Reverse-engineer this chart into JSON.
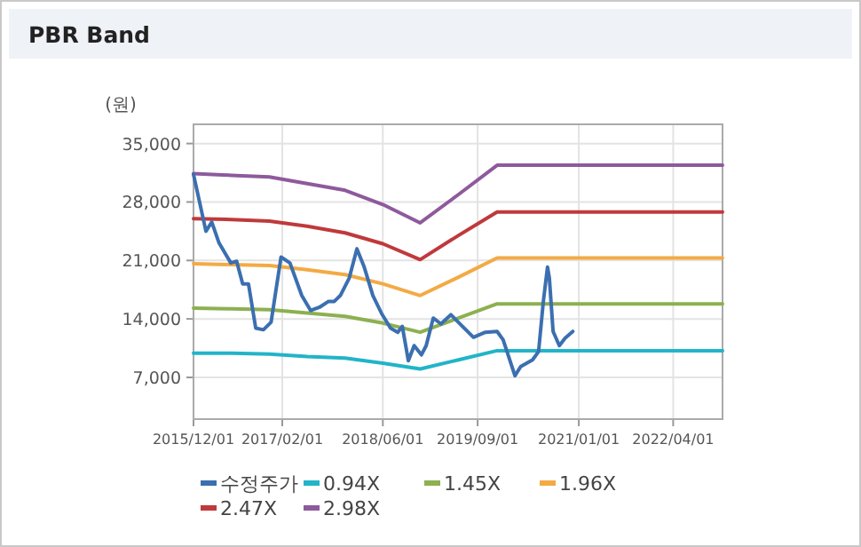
{
  "chart_data": {
    "type": "line",
    "title": "PBR Band",
    "ylabel": "(원)",
    "xlim": [
      "2015-12-01",
      "2022-11-25"
    ],
    "ylim": [
      2000,
      37300
    ],
    "xticks": [
      {
        "value": "2015-12-01",
        "label": "2015/12/01"
      },
      {
        "value": "2017-02-01",
        "label": "2017/02/01"
      },
      {
        "value": "2018-06-01",
        "label": "2018/06/01"
      },
      {
        "value": "2019-09-01",
        "label": "2019/09/01"
      },
      {
        "value": "2021-01-01",
        "label": "2021/01/01"
      },
      {
        "value": "2022-04-01",
        "label": "2022/04/01"
      }
    ],
    "yticks": [
      {
        "value": 7000,
        "label": "7,000"
      },
      {
        "value": 14000,
        "label": "14,000"
      },
      {
        "value": 21000,
        "label": "21,000"
      },
      {
        "value": 28000,
        "label": "28,000"
      },
      {
        "value": 35000,
        "label": "35,000"
      }
    ],
    "grid": true,
    "legend": "bottom",
    "series": [
      {
        "name": "수정주가",
        "color": "#3b6fb0",
        "x": [
          "2015-12-01",
          "2016-01-30",
          "2016-02-27",
          "2016-04-02",
          "2016-05-29",
          "2016-06-26",
          "2016-07-25",
          "2016-08-22",
          "2016-09-26",
          "2016-11-02",
          "2016-12-09",
          "2017-01-26",
          "2017-03-10",
          "2017-05-06",
          "2017-06-18",
          "2017-07-31",
          "2017-09-12",
          "2017-10-10",
          "2017-11-08",
          "2017-12-21",
          "2018-01-27",
          "2018-03-02",
          "2018-04-14",
          "2018-05-27",
          "2018-07-08",
          "2018-08-12",
          "2018-09-03",
          "2018-10-02",
          "2018-10-30",
          "2018-12-04",
          "2018-12-27",
          "2019-01-30",
          "2019-03-08",
          "2019-04-25",
          "2019-06-16",
          "2019-08-12",
          "2019-10-08",
          "2019-12-04",
          "2020-01-02",
          "2020-02-28",
          "2020-03-27",
          "2020-05-23",
          "2020-06-21",
          "2020-07-14",
          "2020-08-03",
          "2020-08-12",
          "2020-08-30",
          "2020-09-29",
          "2020-10-27",
          "2020-12-03"
        ],
        "values": [
          31300,
          24500,
          25600,
          23100,
          20700,
          20900,
          18200,
          18200,
          12900,
          12700,
          13600,
          21400,
          20700,
          16800,
          15000,
          15400,
          16100,
          16100,
          16800,
          18900,
          22400,
          20300,
          16800,
          14600,
          12900,
          12400,
          13100,
          9000,
          10800,
          9700,
          10800,
          14100,
          13400,
          14500,
          13200,
          11800,
          12400,
          12500,
          11500,
          7200,
          8300,
          9100,
          10100,
          16100,
          20200,
          18900,
          12500,
          10800,
          11700,
          12500
        ]
      },
      {
        "name": "0.94X",
        "color": "#22b4c8",
        "x": [
          "2015-12-01",
          "2016-06-01",
          "2016-12-01",
          "2017-06-01",
          "2017-12-01",
          "2018-06-01",
          "2018-11-28",
          "2019-06-01",
          "2019-12-04",
          "2022-11-25"
        ],
        "values": [
          9900,
          9900,
          9800,
          9500,
          9300,
          8700,
          8000,
          9100,
          10200,
          10200
        ]
      },
      {
        "name": "1.45X",
        "color": "#8db050",
        "x": [
          "2015-12-01",
          "2016-06-01",
          "2016-12-01",
          "2017-06-01",
          "2017-12-01",
          "2018-06-01",
          "2018-11-28",
          "2019-06-01",
          "2019-12-04",
          "2022-11-25"
        ],
        "values": [
          15300,
          15200,
          15100,
          14700,
          14300,
          13500,
          12400,
          14100,
          15800,
          15800
        ]
      },
      {
        "name": "1.96X",
        "color": "#f3aa45",
        "x": [
          "2015-12-01",
          "2016-06-01",
          "2016-12-01",
          "2017-06-01",
          "2017-12-01",
          "2018-06-01",
          "2018-11-28",
          "2019-06-01",
          "2019-12-04",
          "2022-11-25"
        ],
        "values": [
          20600,
          20500,
          20400,
          19900,
          19300,
          18200,
          16800,
          19000,
          21300,
          21300
        ]
      },
      {
        "name": "2.47X",
        "color": "#c0393b",
        "x": [
          "2015-12-01",
          "2016-06-01",
          "2016-12-01",
          "2017-06-01",
          "2017-12-01",
          "2018-06-01",
          "2018-11-28",
          "2019-06-01",
          "2019-12-04",
          "2022-11-25"
        ],
        "values": [
          26000,
          25900,
          25700,
          25100,
          24300,
          23000,
          21100,
          24000,
          26800,
          26800
        ]
      },
      {
        "name": "2.98X",
        "color": "#8e5a9c",
        "x": [
          "2015-12-01",
          "2016-06-01",
          "2016-12-01",
          "2017-06-01",
          "2017-12-01",
          "2018-06-01",
          "2018-11-28",
          "2019-06-01",
          "2019-12-04",
          "2022-11-25"
        ],
        "values": [
          31400,
          31200,
          31000,
          30200,
          29400,
          27700,
          25500,
          28900,
          32400,
          32400
        ]
      }
    ]
  }
}
